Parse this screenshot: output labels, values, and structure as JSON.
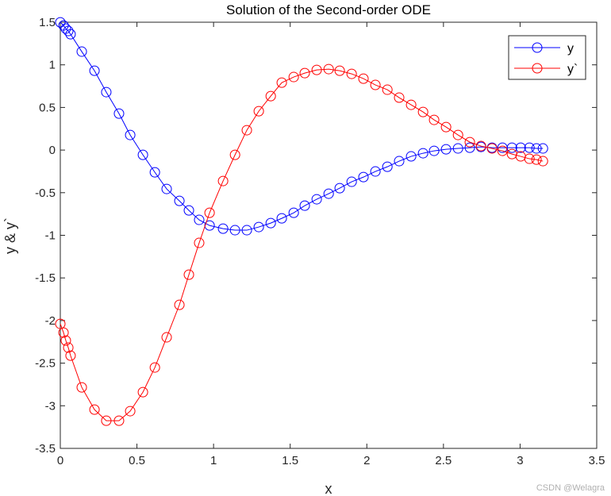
{
  "chart_data": {
    "type": "line",
    "title": "Solution of the Second-order ODE",
    "xlabel": "x",
    "ylabel": "y & y`",
    "xlim": [
      0,
      3.5
    ],
    "ylim": [
      -3.5,
      1.5
    ],
    "xticks": [
      "0",
      "0.5",
      "1",
      "1.5",
      "2",
      "2.5",
      "3",
      "3.5"
    ],
    "yticks": [
      "1.5",
      "1",
      "0.5",
      "0",
      "-0.5",
      "-1",
      "-1.5",
      "-2",
      "-2.5",
      "-3",
      "-3.5"
    ],
    "grid": false,
    "legend_position": "top-right",
    "x": [
      0,
      0.021,
      0.036,
      0.052,
      0.067,
      0.14,
      0.223,
      0.3,
      0.383,
      0.456,
      0.539,
      0.617,
      0.694,
      0.777,
      0.839,
      0.906,
      0.974,
      1.062,
      1.14,
      1.217,
      1.295,
      1.373,
      1.445,
      1.523,
      1.595,
      1.673,
      1.751,
      1.823,
      1.901,
      1.978,
      2.056,
      2.134,
      2.211,
      2.289,
      2.367,
      2.439,
      2.517,
      2.595,
      2.672,
      2.745,
      2.817,
      2.885,
      2.947,
      3.004,
      3.061,
      3.107,
      3.149
    ],
    "series": [
      {
        "name": "y",
        "color": "#0000ff",
        "marker": "circle",
        "values": [
          1.499,
          1.462,
          1.425,
          1.397,
          1.359,
          1.155,
          0.931,
          0.68,
          0.428,
          0.177,
          -0.056,
          -0.261,
          -0.456,
          -0.596,
          -0.708,
          -0.819,
          -0.885,
          -0.922,
          -0.94,
          -0.94,
          -0.903,
          -0.857,
          -0.801,
          -0.736,
          -0.652,
          -0.577,
          -0.512,
          -0.447,
          -0.372,
          -0.317,
          -0.251,
          -0.196,
          -0.13,
          -0.074,
          -0.037,
          -0.009,
          0.009,
          0.019,
          0.028,
          0.037,
          0.028,
          0.028,
          0.028,
          0.028,
          0.028,
          0.019,
          0.019
        ]
      },
      {
        "name": "y`",
        "color": "#ff0000",
        "marker": "circle",
        "values": [
          -2.039,
          -2.142,
          -2.235,
          -2.318,
          -2.412,
          -2.784,
          -3.045,
          -3.175,
          -3.175,
          -3.063,
          -2.84,
          -2.551,
          -2.197,
          -1.816,
          -1.462,
          -1.089,
          -0.736,
          -0.363,
          -0.056,
          0.233,
          0.456,
          0.633,
          0.791,
          0.857,
          0.903,
          0.94,
          0.95,
          0.931,
          0.894,
          0.838,
          0.764,
          0.708,
          0.615,
          0.531,
          0.447,
          0.354,
          0.27,
          0.177,
          0.093,
          0.047,
          0.019,
          -0.009,
          -0.047,
          -0.074,
          -0.102,
          -0.112,
          -0.13
        ]
      }
    ]
  },
  "watermark": "CSDN @Welagra"
}
